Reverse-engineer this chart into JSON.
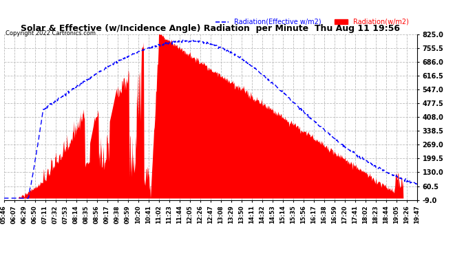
{
  "title": "Solar & Effective (w/Incidence Angle) Radiation  per Minute  Thu Aug 11 19:56",
  "copyright": "Copyright 2022 Cartronics.com",
  "legend_effective": "Radiation(Effective w/m2)",
  "legend_solar": "Radiation(w/m2)",
  "yticks": [
    825.0,
    755.5,
    686.0,
    616.5,
    547.0,
    477.5,
    408.0,
    338.5,
    269.0,
    199.5,
    130.0,
    60.5,
    -9.0
  ],
  "ymin": -9.0,
  "ymax": 825.0,
  "bg_color": "#ffffff",
  "plot_bg_color": "#ffffff",
  "grid_color": "#bbbbbb",
  "solar_fill_color": "#ff0000",
  "solar_line_color": "#ff0000",
  "effective_line_color": "#0000ff",
  "title_color": "#000000",
  "copyright_color": "#000000",
  "xtick_color": "#000000",
  "ytick_color": "#000000"
}
